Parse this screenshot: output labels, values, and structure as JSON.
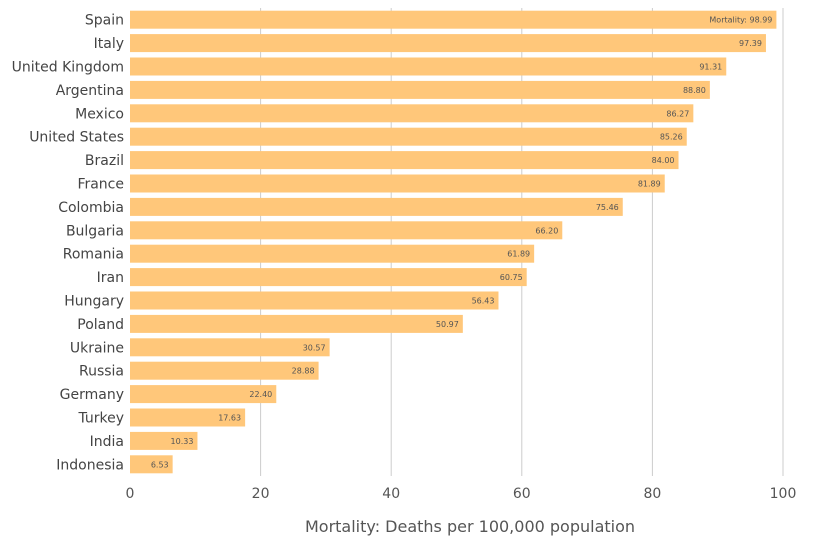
{
  "chart_data": {
    "type": "bar",
    "orientation": "horizontal",
    "categories": [
      "Spain",
      "Italy",
      "United Kingdom",
      "Argentina",
      "Mexico",
      "United States",
      "Brazil",
      "France",
      "Colombia",
      "Bulgaria",
      "Romania",
      "Iran",
      "Hungary",
      "Poland",
      "Ukraine",
      "Russia",
      "Germany",
      "Turkey",
      "India",
      "Indonesia"
    ],
    "values": [
      98.99,
      97.39,
      91.31,
      88.8,
      86.27,
      85.26,
      84.0,
      81.89,
      75.46,
      66.2,
      61.89,
      60.75,
      56.43,
      50.97,
      30.57,
      28.88,
      22.4,
      17.63,
      10.33,
      6.53
    ],
    "value_labels": [
      "Mortality: 98.99",
      "97.39",
      "91.31",
      "88.80",
      "86.27",
      "85.26",
      "84.00",
      "81.89",
      "75.46",
      "66.20",
      "61.89",
      "60.75",
      "56.43",
      "50.97",
      "30.57",
      "28.88",
      "22.40",
      "17.63",
      "10.33",
      "6.53"
    ],
    "title": "",
    "xlabel": "Mortality: Deaths per 100,000 population",
    "ylabel": "",
    "xlim": [
      0,
      100
    ],
    "xticks": [
      0,
      20,
      40,
      60,
      80,
      100
    ],
    "grid": true,
    "legend": "none",
    "colors": {
      "bar": "#ffc77a",
      "grid": "#cccccc",
      "text": "#444444"
    }
  }
}
